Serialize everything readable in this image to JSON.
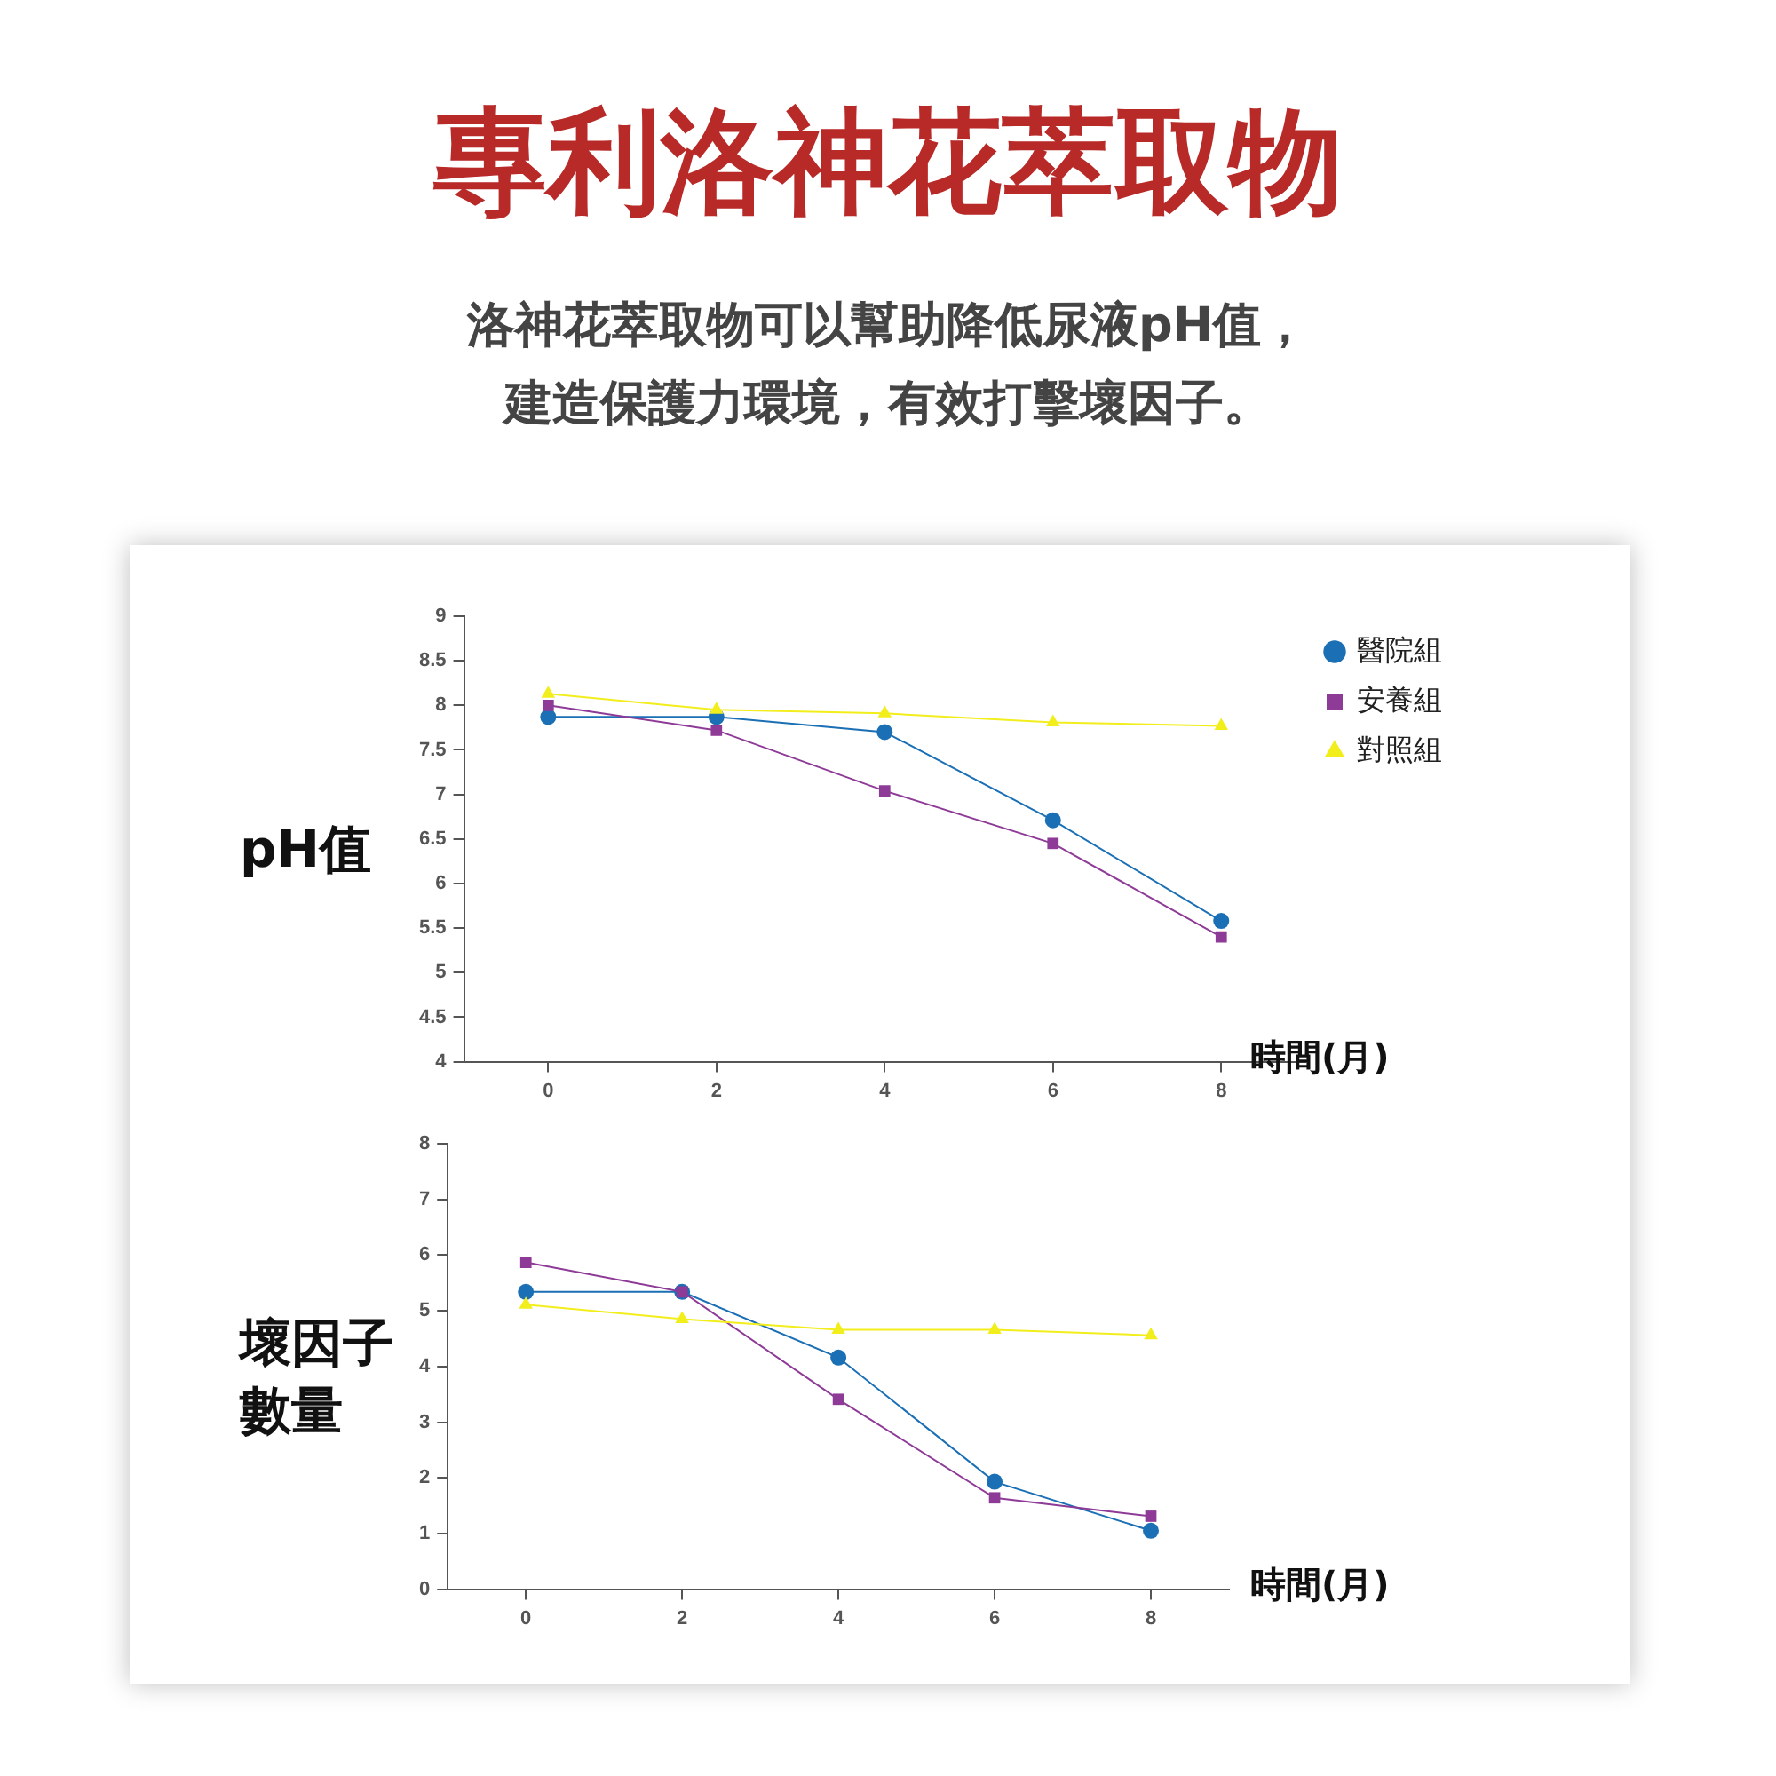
{
  "chart_data": [
    {
      "type": "line",
      "title": "專利洛神花萃取物",
      "subtitle": "洛神花萃取物可以幫助降低尿液pH值，建造保護力環境，有效打擊壞因子。",
      "ylabel": "pH值",
      "xlabel": "時間(月)",
      "categories": [
        "0",
        "2",
        "4",
        "6",
        "8"
      ],
      "ylim": [
        4,
        9
      ],
      "yticks": [
        4,
        4.5,
        5,
        5.5,
        6,
        6.5,
        7,
        7.5,
        8,
        8.5,
        9
      ],
      "grid": false,
      "legend": "top right",
      "series": [
        {
          "name": "醫院組",
          "color": "#1a6fb5",
          "marker": "circle",
          "values": [
            7.87,
            7.87,
            7.7,
            6.71,
            5.58
          ]
        },
        {
          "name": "安養組",
          "color": "#8e3a97",
          "marker": "square",
          "values": [
            8.0,
            7.72,
            7.04,
            6.45,
            5.4
          ]
        },
        {
          "name": "對照組",
          "color": "#f2ee1c",
          "marker": "triangle",
          "values": [
            8.13,
            7.95,
            7.91,
            7.81,
            7.77
          ]
        }
      ]
    },
    {
      "type": "line",
      "ylabel": "壞因子數量",
      "xlabel": "時間(月)",
      "categories": [
        "0",
        "2",
        "4",
        "6",
        "8"
      ],
      "ylim": [
        0,
        8
      ],
      "yticks": [
        0,
        1,
        2,
        3,
        4,
        5,
        6,
        7,
        8
      ],
      "grid": false,
      "legend": false,
      "series": [
        {
          "color": "#1a6fb5",
          "marker": "circle",
          "values": [
            5.34,
            5.34,
            4.16,
            1.93,
            1.05
          ]
        },
        {
          "color": "#8e3a97",
          "marker": "square",
          "values": [
            5.87,
            5.34,
            3.41,
            1.64,
            1.31
          ]
        },
        {
          "color": "#f2ee1c",
          "marker": "triangle",
          "values": [
            5.11,
            4.85,
            4.66,
            4.66,
            4.56
          ]
        }
      ]
    }
  ]
}
